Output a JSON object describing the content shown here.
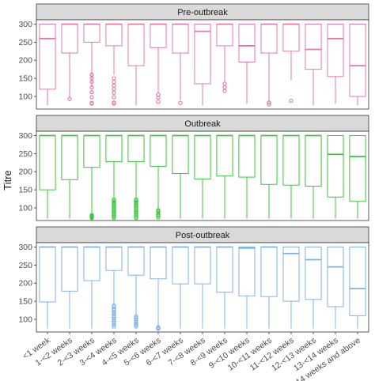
{
  "chart_data": {
    "type": "boxplot",
    "ylabel": "Titre",
    "xlabel": "",
    "yticks": [
      100,
      150,
      200,
      250,
      300
    ],
    "ylim": [
      65,
      312
    ],
    "categories": [
      "<1 week",
      "1-<2 weeks",
      "2-<3 weeks",
      "3-<4 weeks",
      "4-<5 weeks",
      "5-<6 weeks",
      "6-<7 weeks",
      "7-<8 weeks",
      "8-<9 weeks",
      "9-<10 weeks",
      "10-<11 weeks",
      "11-<12 weeks",
      "12-<13 weeks",
      "13-<14 weeks",
      "14 weeks and above"
    ],
    "panels": [
      {
        "name": "Pre-outbreak",
        "color": "#e377a8",
        "boxes": [
          {
            "min": 75,
            "q1": 120,
            "median": 260,
            "q3": 300,
            "max": 300,
            "outliers": []
          },
          {
            "min": 95,
            "q1": 220,
            "median": 300,
            "q3": 300,
            "max": 300,
            "outliers": [
              93
            ]
          },
          {
            "min": 125,
            "q1": 250,
            "median": 300,
            "q3": 300,
            "max": 300,
            "outliers": [
              80,
              82,
              98,
              112,
              125,
              140,
              150,
              160
            ]
          },
          {
            "min": 160,
            "q1": 240,
            "median": 300,
            "q3": 300,
            "max": 300,
            "outliers": [
              80,
              83,
              98,
              110,
              120,
              130,
              140,
              150
            ]
          },
          {
            "min": 75,
            "q1": 185,
            "median": 300,
            "q3": 300,
            "max": 300,
            "outliers": []
          },
          {
            "min": 110,
            "q1": 235,
            "median": 300,
            "q3": 300,
            "max": 300,
            "outliers": [
              85,
              97,
              105
            ]
          },
          {
            "min": 90,
            "q1": 220,
            "median": 300,
            "q3": 300,
            "max": 300,
            "outliers": [
              82
            ]
          },
          {
            "min": 75,
            "q1": 135,
            "median": 280,
            "q3": 300,
            "max": 300,
            "outliers": []
          },
          {
            "min": 140,
            "q1": 240,
            "median": 300,
            "q3": 300,
            "max": 300,
            "outliers": [
              115,
              125,
              135
            ]
          },
          {
            "min": 80,
            "q1": 195,
            "median": 240,
            "q3": 300,
            "max": 300,
            "outliers": []
          },
          {
            "min": 85,
            "q1": 220,
            "median": 300,
            "q3": 300,
            "max": 300,
            "outliers": [
              78,
              83
            ]
          },
          {
            "min": 145,
            "q1": 225,
            "median": 300,
            "q3": 300,
            "max": 300,
            "outliers": [
              88
            ]
          },
          {
            "min": 75,
            "q1": 175,
            "median": 230,
            "q3": 300,
            "max": 300,
            "outliers": []
          },
          {
            "min": 80,
            "q1": 155,
            "median": 260,
            "q3": 300,
            "max": 300,
            "outliers": []
          },
          {
            "min": 75,
            "q1": 100,
            "median": 185,
            "q3": 300,
            "max": 300,
            "outliers": []
          }
        ]
      },
      {
        "name": "Outbreak",
        "color": "#3cc63c",
        "boxes": [
          {
            "min": 70,
            "q1": 150,
            "median": 300,
            "q3": 300,
            "max": 300,
            "outliers": []
          },
          {
            "min": 70,
            "q1": 178,
            "median": 300,
            "q3": 300,
            "max": 300,
            "outliers": []
          },
          {
            "min": 82,
            "q1": 212,
            "median": 300,
            "q3": 300,
            "max": 300,
            "outliers": [
              72,
              74,
              76,
              78,
              80
            ]
          },
          {
            "min": 125,
            "q1": 228,
            "median": 300,
            "q3": 300,
            "max": 300,
            "outliers": [
              72,
              76,
              80,
              84,
              88,
              92,
              96,
              100,
              104,
              108,
              112,
              116,
              120,
              123
            ]
          },
          {
            "min": 125,
            "q1": 228,
            "median": 300,
            "q3": 300,
            "max": 300,
            "outliers": [
              72,
              76,
              80,
              84,
              88,
              92,
              96,
              100,
              104,
              108,
              112,
              116,
              120,
              123
            ]
          },
          {
            "min": 95,
            "q1": 215,
            "median": 300,
            "q3": 300,
            "max": 300,
            "outliers": [
              74,
              78,
              82,
              86,
              90,
              93
            ]
          },
          {
            "min": 70,
            "q1": 195,
            "median": 300,
            "q3": 300,
            "max": 300,
            "outliers": []
          },
          {
            "min": 70,
            "q1": 180,
            "median": 300,
            "q3": 300,
            "max": 300,
            "outliers": []
          },
          {
            "min": 70,
            "q1": 188,
            "median": 300,
            "q3": 300,
            "max": 300,
            "outliers": []
          },
          {
            "min": 70,
            "q1": 185,
            "median": 300,
            "q3": 300,
            "max": 300,
            "outliers": []
          },
          {
            "min": 70,
            "q1": 165,
            "median": 300,
            "q3": 300,
            "max": 300,
            "outliers": []
          },
          {
            "min": 70,
            "q1": 163,
            "median": 300,
            "q3": 300,
            "max": 300,
            "outliers": []
          },
          {
            "min": 70,
            "q1": 160,
            "median": 300,
            "q3": 300,
            "max": 300,
            "outliers": []
          },
          {
            "min": 70,
            "q1": 130,
            "median": 248,
            "q3": 300,
            "max": 300,
            "outliers": []
          },
          {
            "min": 70,
            "q1": 118,
            "median": 242,
            "q3": 300,
            "max": 300,
            "outliers": []
          }
        ]
      },
      {
        "name": "Post-outbreak",
        "color": "#7fb3e8",
        "boxes": [
          {
            "min": 75,
            "q1": 148,
            "median": 300,
            "q3": 300,
            "max": 300,
            "outliers": []
          },
          {
            "min": 75,
            "q1": 178,
            "median": 300,
            "q3": 300,
            "max": 300,
            "outliers": []
          },
          {
            "min": 75,
            "q1": 207,
            "median": 300,
            "q3": 300,
            "max": 300,
            "outliers": []
          },
          {
            "min": 140,
            "q1": 235,
            "median": 300,
            "q3": 300,
            "max": 300,
            "outliers": [
              80,
              85,
              90,
              95,
              100,
              105,
              110,
              115,
              120,
              125,
              130,
              135,
              138
            ]
          },
          {
            "min": 110,
            "q1": 222,
            "median": 300,
            "q3": 300,
            "max": 300,
            "outliers": [
              80,
              84,
              88,
              92,
              96,
              100,
              104,
              108
            ]
          },
          {
            "min": 80,
            "q1": 212,
            "median": 300,
            "q3": 300,
            "max": 300,
            "outliers": [
              74,
              76,
              78
            ]
          },
          {
            "min": 75,
            "q1": 198,
            "median": 300,
            "q3": 300,
            "max": 300,
            "outliers": []
          },
          {
            "min": 75,
            "q1": 198,
            "median": 300,
            "q3": 300,
            "max": 300,
            "outliers": []
          },
          {
            "min": 75,
            "q1": 175,
            "median": 300,
            "q3": 300,
            "max": 300,
            "outliers": []
          },
          {
            "min": 75,
            "q1": 165,
            "median": 297,
            "q3": 300,
            "max": 300,
            "outliers": []
          },
          {
            "min": 75,
            "q1": 163,
            "median": 300,
            "q3": 300,
            "max": 300,
            "outliers": []
          },
          {
            "min": 75,
            "q1": 150,
            "median": 282,
            "q3": 300,
            "max": 300,
            "outliers": []
          },
          {
            "min": 75,
            "q1": 155,
            "median": 265,
            "q3": 300,
            "max": 300,
            "outliers": []
          },
          {
            "min": 75,
            "q1": 135,
            "median": 245,
            "q3": 300,
            "max": 300,
            "outliers": []
          },
          {
            "min": 75,
            "q1": 110,
            "median": 185,
            "q3": 300,
            "max": 300,
            "outliers": []
          }
        ]
      }
    ]
  }
}
